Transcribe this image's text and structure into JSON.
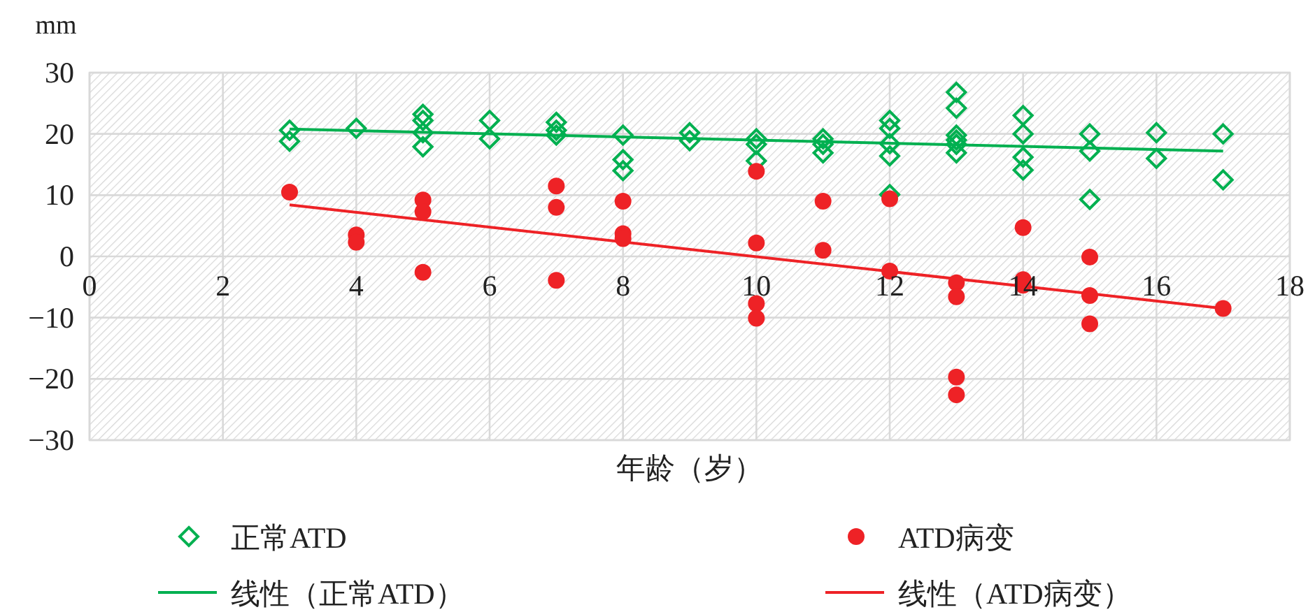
{
  "chart_data": {
    "type": "scatter",
    "ylabel": "mm",
    "xlabel": "年龄（岁）",
    "xlim": [
      0,
      18
    ],
    "xticks": [
      0,
      2,
      4,
      6,
      8,
      10,
      12,
      14,
      16,
      18
    ],
    "ylim": [
      -30,
      30
    ],
    "yticks": [
      -30,
      -20,
      -10,
      0,
      10,
      20,
      30
    ],
    "grid": true,
    "legend": "bottom",
    "series": [
      {
        "name": "正常ATD",
        "type": "scatter",
        "marker": "diamond",
        "color": "#00b050",
        "x": [
          3,
          3,
          4,
          5,
          5,
          5,
          5,
          6,
          6,
          7,
          7,
          7,
          8,
          8,
          8,
          9,
          9,
          10,
          10,
          10,
          11,
          11,
          11,
          12,
          12,
          12,
          12,
          12,
          13,
          13,
          13,
          13,
          13,
          13,
          14,
          14,
          14,
          14,
          15,
          15,
          15,
          16,
          16,
          17,
          17
        ],
        "values": [
          20.6,
          18.8,
          20.9,
          23.2,
          22.2,
          20.2,
          17.9,
          22.2,
          19.2,
          21.9,
          20.6,
          19.8,
          19.8,
          15.8,
          14.0,
          20.2,
          18.9,
          19.2,
          18.3,
          15.6,
          19.2,
          18.3,
          16.9,
          22.2,
          20.9,
          18.4,
          16.4,
          10.1,
          26.8,
          24.2,
          19.8,
          19.0,
          18.3,
          16.9,
          23.0,
          20.0,
          16.2,
          14.1,
          20.0,
          17.2,
          9.3,
          20.2,
          16.0,
          20.0,
          12.5
        ]
      },
      {
        "name": "ATD病变",
        "type": "scatter",
        "marker": "circle",
        "color": "#ee2226",
        "x": [
          3,
          4,
          4,
          5,
          5,
          5,
          7,
          7,
          7,
          8,
          8,
          8,
          10,
          10,
          10,
          10,
          11,
          11,
          12,
          12,
          13,
          13,
          13,
          13,
          14,
          14,
          14,
          15,
          15,
          15,
          17
        ],
        "values": [
          10.5,
          3.5,
          2.3,
          9.2,
          7.3,
          -2.6,
          11.5,
          8.0,
          -3.9,
          9.0,
          3.7,
          2.9,
          13.9,
          2.2,
          -7.7,
          -10.1,
          9.0,
          1.0,
          9.4,
          -2.4,
          -4.3,
          -6.6,
          -19.7,
          -22.6,
          4.7,
          -3.8,
          -4.7,
          -0.1,
          -6.4,
          -11.0,
          -8.5
        ]
      },
      {
        "name": "线性（正常ATD）",
        "type": "line",
        "marker": "none",
        "color": "#00b050",
        "x": [
          3,
          17
        ],
        "values": [
          20.8,
          17.2
        ]
      },
      {
        "name": "线性（ATD病变）",
        "type": "line",
        "marker": "none",
        "color": "#ee2226",
        "x": [
          3,
          17
        ],
        "values": [
          8.4,
          -8.5
        ]
      }
    ]
  }
}
